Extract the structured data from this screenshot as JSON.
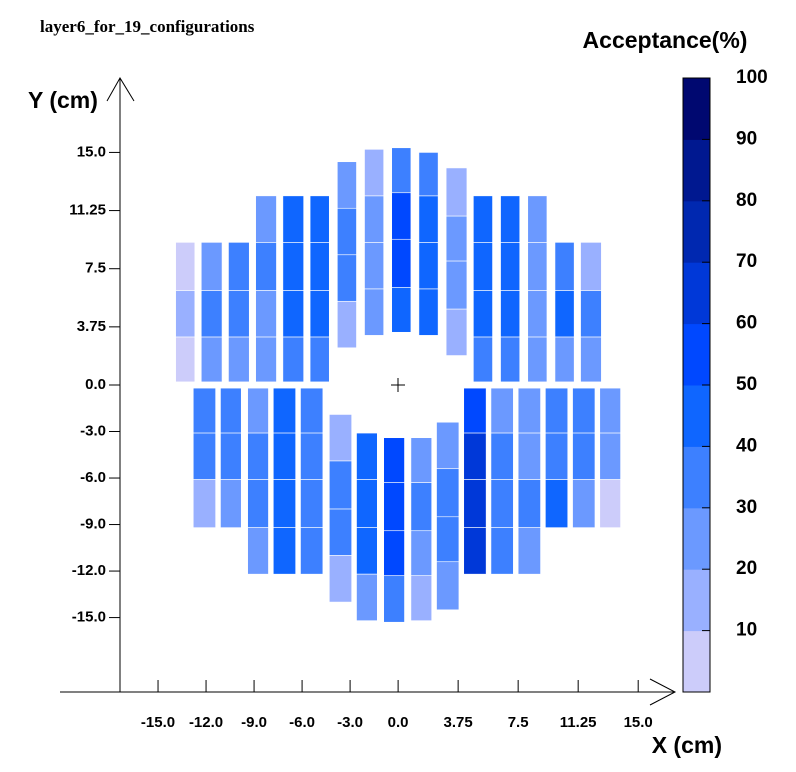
{
  "chart_data": {
    "type": "heatmap",
    "title": "layer6_for_19_configurations",
    "x_label": "X (cm)",
    "y_label": "Y (cm)",
    "colorbar_title": "Acceptance(%)",
    "xlim": [
      -21.125,
      17.3
    ],
    "ylim": [
      -19.8,
      19.8
    ],
    "xticks": [
      {
        "value": -15,
        "label": "-15.0"
      },
      {
        "value": -12,
        "label": "-12.0"
      },
      {
        "value": -9,
        "label": "-9.0"
      },
      {
        "value": -6,
        "label": "-6.0"
      },
      {
        "value": -3,
        "label": "-3.0"
      },
      {
        "value": 0,
        "label": "0.0"
      },
      3.75,
      {
        "value": 7.5,
        "label": "7.5"
      },
      11.25,
      {
        "value": 15,
        "label": "15.0"
      }
    ],
    "yticks": [
      {
        "value": 15,
        "label": "15.0"
      },
      11.25,
      {
        "value": 7.5,
        "label": "7.5"
      },
      3.75,
      {
        "value": 0,
        "label": "0.0"
      },
      {
        "value": -3,
        "label": "-3.0"
      },
      {
        "value": -6,
        "label": "-6.0"
      },
      {
        "value": -9,
        "label": "-9.0"
      },
      {
        "value": -12,
        "label": "-12.0"
      },
      {
        "value": -15,
        "label": "-15.0"
      }
    ],
    "zlim": [
      0,
      100
    ],
    "zticks": [
      10,
      20,
      30,
      40,
      50,
      60,
      70,
      80,
      90,
      100
    ],
    "colors": [
      "#ccccfa",
      "#99b0ff",
      "#6b99ff",
      "#3d80ff",
      "#0f66ff",
      "#0048ff",
      "#0038d8",
      "#0028b0",
      "#001890",
      "#000870"
    ],
    "columns": [
      {
        "x": [
          -13.9,
          -12.7
        ],
        "cells": [
          {
            "y": [
              0.2,
              3.1
            ],
            "value": 5
          },
          {
            "y": [
              3.1,
              6.1
            ],
            "value": 15
          },
          {
            "y": [
              6.1,
              9.2
            ],
            "value": 5
          }
        ]
      },
      {
        "x": [
          -12.3,
          -11.0
        ],
        "cells": [
          {
            "y": [
              0.2,
              3.1
            ],
            "value": 25
          },
          {
            "y": [
              3.1,
              6.1
            ],
            "value": 35
          },
          {
            "y": [
              6.1,
              9.2
            ],
            "value": 25
          }
        ]
      },
      {
        "x": [
          -10.6,
          -9.3
        ],
        "cells": [
          {
            "y": [
              0.2,
              3.1
            ],
            "value": 25
          },
          {
            "y": [
              3.1,
              6.1
            ],
            "value": 35
          },
          {
            "y": [
              6.1,
              9.2
            ],
            "value": 35
          }
        ]
      },
      {
        "x": [
          -8.9,
          -7.6
        ],
        "cells": [
          {
            "y": [
              0.2,
              3.1
            ],
            "value": 25
          },
          {
            "y": [
              3.1,
              6.1
            ],
            "value": 25
          },
          {
            "y": [
              6.1,
              9.2
            ],
            "value": 35
          },
          {
            "y": [
              9.2,
              12.2
            ],
            "value": 25
          }
        ]
      },
      {
        "x": [
          -7.2,
          -5.9
        ],
        "cells": [
          {
            "y": [
              0.2,
              3.1
            ],
            "value": 35
          },
          {
            "y": [
              3.1,
              6.1
            ],
            "value": 45
          },
          {
            "y": [
              6.1,
              9.2
            ],
            "value": 45
          },
          {
            "y": [
              9.2,
              12.2
            ],
            "value": 45
          }
        ]
      },
      {
        "x": [
          -5.5,
          -4.3
        ],
        "cells": [
          {
            "y": [
              0.2,
              3.1
            ],
            "value": 35
          },
          {
            "y": [
              3.1,
              6.1
            ],
            "value": 48
          },
          {
            "y": [
              6.1,
              9.2
            ],
            "value": 48
          },
          {
            "y": [
              9.2,
              12.2
            ],
            "value": 48
          }
        ]
      },
      {
        "x": [
          -3.8,
          -2.6
        ],
        "cells": [
          {
            "y": [
              2.4,
              5.4
            ],
            "value": 15
          },
          {
            "y": [
              5.4,
              8.4
            ],
            "value": 35
          },
          {
            "y": [
              8.4,
              11.4
            ],
            "value": 35
          },
          {
            "y": [
              11.4,
              14.4
            ],
            "value": 25
          }
        ]
      },
      {
        "x": [
          -2.1,
          -0.9
        ],
        "cells": [
          {
            "y": [
              3.2,
              6.2
            ],
            "value": 25
          },
          {
            "y": [
              6.2,
              9.2
            ],
            "value": 25
          },
          {
            "y": [
              9.2,
              12.2
            ],
            "value": 25
          },
          {
            "y": [
              12.2,
              15.2
            ],
            "value": 15
          }
        ]
      },
      {
        "x": [
          -0.4,
          0.8
        ],
        "cells": [
          {
            "y": [
              3.4,
              6.3
            ],
            "value": 45
          },
          {
            "y": [
              6.3,
              9.4
            ],
            "value": 52
          },
          {
            "y": [
              9.4,
              12.4
            ],
            "value": 52
          },
          {
            "y": [
              12.4,
              15.3
            ],
            "value": 35
          }
        ]
      },
      {
        "x": [
          1.3,
          2.5
        ],
        "cells": [
          {
            "y": [
              3.2,
              6.2
            ],
            "value": 45
          },
          {
            "y": [
              6.2,
              9.2
            ],
            "value": 45
          },
          {
            "y": [
              9.2,
              12.2
            ],
            "value": 45
          },
          {
            "y": [
              12.2,
              15.0
            ],
            "value": 35
          }
        ]
      },
      {
        "x": [
          3.0,
          4.3
        ],
        "cells": [
          {
            "y": [
              1.9,
              4.9
            ],
            "value": 15
          },
          {
            "y": [
              4.9,
              8.0
            ],
            "value": 25
          },
          {
            "y": [
              8.0,
              10.9
            ],
            "value": 25
          },
          {
            "y": [
              10.9,
              14.0
            ],
            "value": 15
          }
        ]
      },
      {
        "x": [
          4.7,
          5.9
        ],
        "cells": [
          {
            "y": [
              0.2,
              3.1
            ],
            "value": 35
          },
          {
            "y": [
              3.1,
              6.1
            ],
            "value": 45
          },
          {
            "y": [
              6.1,
              9.2
            ],
            "value": 45
          },
          {
            "y": [
              9.2,
              12.2
            ],
            "value": 45
          }
        ]
      },
      {
        "x": [
          6.4,
          7.6
        ],
        "cells": [
          {
            "y": [
              0.2,
              3.1
            ],
            "value": 35
          },
          {
            "y": [
              3.1,
              6.1
            ],
            "value": 45
          },
          {
            "y": [
              6.1,
              9.2
            ],
            "value": 45
          },
          {
            "y": [
              9.2,
              12.2
            ],
            "value": 45
          }
        ]
      },
      {
        "x": [
          8.1,
          9.3
        ],
        "cells": [
          {
            "y": [
              0.2,
              3.1
            ],
            "value": 25
          },
          {
            "y": [
              3.1,
              6.1
            ],
            "value": 25
          },
          {
            "y": [
              6.1,
              9.2
            ],
            "value": 25
          },
          {
            "y": [
              9.2,
              12.2
            ],
            "value": 25
          }
        ]
      },
      {
        "x": [
          9.8,
          11.0
        ],
        "cells": [
          {
            "y": [
              0.2,
              3.1
            ],
            "value": 25
          },
          {
            "y": [
              3.1,
              6.1
            ],
            "value": 45
          },
          {
            "y": [
              6.1,
              9.2
            ],
            "value": 35
          }
        ]
      },
      {
        "x": [
          11.4,
          12.7
        ],
        "cells": [
          {
            "y": [
              0.2,
              3.1
            ],
            "value": 25
          },
          {
            "y": [
              3.1,
              6.1
            ],
            "value": 35
          },
          {
            "y": [
              6.1,
              9.2
            ],
            "value": 15
          }
        ]
      },
      {
        "x": [
          -12.8,
          -11.4
        ],
        "cells": [
          {
            "y": [
              -3.1,
              -0.2
            ],
            "value": 35
          },
          {
            "y": [
              -6.1,
              -3.1
            ],
            "value": 35
          },
          {
            "y": [
              -9.2,
              -6.1
            ],
            "value": 15
          }
        ]
      },
      {
        "x": [
          -11.1,
          -9.8
        ],
        "cells": [
          {
            "y": [
              -3.1,
              -0.2
            ],
            "value": 35
          },
          {
            "y": [
              -6.1,
              -3.1
            ],
            "value": 35
          },
          {
            "y": [
              -9.2,
              -6.1
            ],
            "value": 25
          }
        ]
      },
      {
        "x": [
          -9.4,
          -8.1
        ],
        "cells": [
          {
            "y": [
              -3.1,
              -0.2
            ],
            "value": 25
          },
          {
            "y": [
              -6.1,
              -3.1
            ],
            "value": 35
          },
          {
            "y": [
              -9.2,
              -6.1
            ],
            "value": 35
          },
          {
            "y": [
              -12.2,
              -9.2
            ],
            "value": 25
          }
        ]
      },
      {
        "x": [
          -7.8,
          -6.4
        ],
        "cells": [
          {
            "y": [
              -3.1,
              -0.2
            ],
            "value": 45
          },
          {
            "y": [
              -6.1,
              -3.1
            ],
            "value": 48
          },
          {
            "y": [
              -9.2,
              -6.1
            ],
            "value": 48
          },
          {
            "y": [
              -12.2,
              -9.2
            ],
            "value": 45
          }
        ]
      },
      {
        "x": [
          -6.1,
          -4.7
        ],
        "cells": [
          {
            "y": [
              -3.1,
              -0.2
            ],
            "value": 35
          },
          {
            "y": [
              -6.1,
              -3.1
            ],
            "value": 35
          },
          {
            "y": [
              -9.2,
              -6.1
            ],
            "value": 35
          },
          {
            "y": [
              -12.2,
              -9.2
            ],
            "value": 35
          }
        ]
      },
      {
        "x": [
          -4.3,
          -2.9
        ],
        "cells": [
          {
            "y": [
              -4.9,
              -1.9
            ],
            "value": 15
          },
          {
            "y": [
              -8.0,
              -4.9
            ],
            "value": 35
          },
          {
            "y": [
              -11.0,
              -8.0
            ],
            "value": 35
          },
          {
            "y": [
              -14.0,
              -11.0
            ],
            "value": 15
          }
        ]
      },
      {
        "x": [
          -2.6,
          -1.3
        ],
        "cells": [
          {
            "y": [
              -6.1,
              -3.1
            ],
            "value": 45
          },
          {
            "y": [
              -9.2,
              -6.1
            ],
            "value": 45
          },
          {
            "y": [
              -12.2,
              -9.2
            ],
            "value": 45
          },
          {
            "y": [
              -15.2,
              -12.2
            ],
            "value": 25
          }
        ]
      },
      {
        "x": [
          -0.9,
          0.4
        ],
        "cells": [
          {
            "y": [
              -6.3,
              -3.4
            ],
            "value": 55
          },
          {
            "y": [
              -9.4,
              -6.3
            ],
            "value": 55
          },
          {
            "y": [
              -12.3,
              -9.4
            ],
            "value": 55
          },
          {
            "y": [
              -15.3,
              -12.3
            ],
            "value": 35
          }
        ]
      },
      {
        "x": [
          0.8,
          2.1
        ],
        "cells": [
          {
            "y": [
              -6.3,
              -3.4
            ],
            "value": 25
          },
          {
            "y": [
              -9.4,
              -6.3
            ],
            "value": 35
          },
          {
            "y": [
              -12.3,
              -9.4
            ],
            "value": 25
          },
          {
            "y": [
              -15.2,
              -12.3
            ],
            "value": 15
          }
        ]
      },
      {
        "x": [
          2.4,
          3.8
        ],
        "cells": [
          {
            "y": [
              -5.4,
              -2.4
            ],
            "value": 25
          },
          {
            "y": [
              -8.5,
              -5.4
            ],
            "value": 35
          },
          {
            "y": [
              -11.4,
              -8.5
            ],
            "value": 35
          },
          {
            "y": [
              -14.5,
              -11.4
            ],
            "value": 25
          }
        ]
      },
      {
        "x": [
          4.1,
          5.5
        ],
        "cells": [
          {
            "y": [
              -3.1,
              -0.2
            ],
            "value": 55
          },
          {
            "y": [
              -6.1,
              -3.1
            ],
            "value": 65
          },
          {
            "y": [
              -9.2,
              -6.1
            ],
            "value": 65
          },
          {
            "y": [
              -12.2,
              -9.2
            ],
            "value": 65
          }
        ]
      },
      {
        "x": [
          5.8,
          7.2
        ],
        "cells": [
          {
            "y": [
              -3.1,
              -0.2
            ],
            "value": 25
          },
          {
            "y": [
              -6.1,
              -3.1
            ],
            "value": 35
          },
          {
            "y": [
              -9.2,
              -6.1
            ],
            "value": 35
          },
          {
            "y": [
              -12.2,
              -9.2
            ],
            "value": 35
          }
        ]
      },
      {
        "x": [
          7.5,
          8.9
        ],
        "cells": [
          {
            "y": [
              -3.1,
              -0.2
            ],
            "value": 25
          },
          {
            "y": [
              -6.1,
              -3.1
            ],
            "value": 25
          },
          {
            "y": [
              -9.2,
              -6.1
            ],
            "value": 35
          },
          {
            "y": [
              -12.2,
              -9.2
            ],
            "value": 25
          }
        ]
      },
      {
        "x": [
          9.2,
          10.6
        ],
        "cells": [
          {
            "y": [
              -3.1,
              -0.2
            ],
            "value": 35
          },
          {
            "y": [
              -6.1,
              -3.1
            ],
            "value": 35
          },
          {
            "y": [
              -9.2,
              -6.1
            ],
            "value": 45
          }
        ]
      },
      {
        "x": [
          10.9,
          12.3
        ],
        "cells": [
          {
            "y": [
              -3.1,
              -0.2
            ],
            "value": 35
          },
          {
            "y": [
              -6.1,
              -3.1
            ],
            "value": 35
          },
          {
            "y": [
              -9.2,
              -6.1
            ],
            "value": 25
          }
        ]
      },
      {
        "x": [
          12.6,
          13.9
        ],
        "cells": [
          {
            "y": [
              -3.1,
              -0.2
            ],
            "value": 25
          },
          {
            "y": [
              -6.1,
              -3.1
            ],
            "value": 25
          },
          {
            "y": [
              -9.2,
              -6.1
            ],
            "value": 5
          }
        ]
      }
    ]
  }
}
